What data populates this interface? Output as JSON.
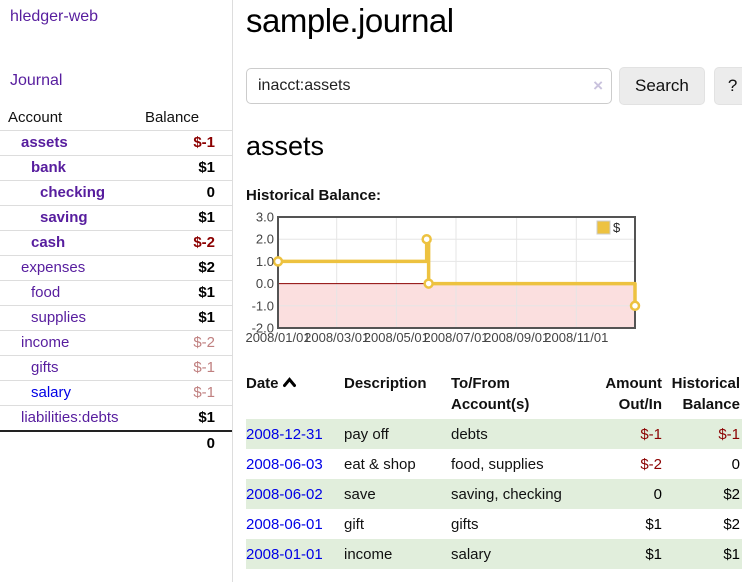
{
  "app": {
    "brand": "hledger-web"
  },
  "sidebar": {
    "journal_link": "Journal",
    "header": {
      "account": "Account",
      "balance": "Balance"
    },
    "accounts": [
      {
        "name": "assets",
        "balance": "$-1"
      },
      {
        "name": "bank",
        "balance": "$1"
      },
      {
        "name": "checking",
        "balance": "0"
      },
      {
        "name": "saving",
        "balance": "$1"
      },
      {
        "name": "cash",
        "balance": "$-2"
      },
      {
        "name": "expenses",
        "balance": "$2"
      },
      {
        "name": "food",
        "balance": "$1"
      },
      {
        "name": "supplies",
        "balance": "$1"
      },
      {
        "name": "income",
        "balance": "$-2"
      },
      {
        "name": "gifts",
        "balance": "$-1"
      },
      {
        "name": "salary",
        "balance": "$-1"
      },
      {
        "name": "liabilities:debts",
        "balance": "$1"
      }
    ],
    "total": "0"
  },
  "header": {
    "title": "sample.journal"
  },
  "search": {
    "query": "inacct:assets",
    "clear_icon": "×",
    "button_label": "Search",
    "help_label": "?"
  },
  "account_page": {
    "heading": "assets",
    "chart_label": "Historical Balance:"
  },
  "chart_data": {
    "type": "line",
    "title": "Historical Balance",
    "legend": {
      "label": "$",
      "position": "top-right"
    },
    "series": [
      {
        "name": "$",
        "color": "#edc240",
        "step": true,
        "points": [
          {
            "date": "2008-01-01",
            "day": 0,
            "value": 1
          },
          {
            "date": "2008-06-01",
            "day": 152,
            "value": 2
          },
          {
            "date": "2008-06-03",
            "day": 154,
            "value": 0
          },
          {
            "date": "2008-12-31",
            "day": 365,
            "value": -1
          }
        ]
      }
    ],
    "x_ticks": [
      {
        "label": "2008/01/01",
        "day": 0
      },
      {
        "label": "2008/03/01",
        "day": 60
      },
      {
        "label": "2008/05/01",
        "day": 121
      },
      {
        "label": "2008/07/01",
        "day": 182
      },
      {
        "label": "2008/09/01",
        "day": 244
      },
      {
        "label": "2008/11/01",
        "day": 305
      }
    ],
    "y_ticks": [
      3.0,
      2.0,
      1.0,
      0.0,
      -1.0,
      -2.0
    ],
    "ylim": [
      -2,
      3
    ],
    "xlim_days": [
      0,
      365
    ],
    "grid": true,
    "colors": {
      "negative_fill": "#fbdfdf",
      "zero_line": "#8b0000",
      "grid_line": "#e6e6e6",
      "border": "#545454",
      "tick_text": "#444444"
    }
  },
  "register": {
    "columns": {
      "date": "Date",
      "description": "Description",
      "accounts_l1": "To/From",
      "accounts_l2": "Account(s)",
      "amount_l1": "Amount",
      "amount_l2": "Out/In",
      "balance_l1": "Historical",
      "balance_l2": "Balance"
    },
    "rows": [
      {
        "date": "2008-12-31",
        "description": "pay off",
        "accounts": "debts",
        "amount": "$-1",
        "balance": "$-1"
      },
      {
        "date": "2008-06-03",
        "description": "eat & shop",
        "accounts": "food, supplies",
        "amount": "$-2",
        "balance": "0"
      },
      {
        "date": "2008-06-02",
        "description": "save",
        "accounts": "saving, checking",
        "amount": "0",
        "balance": "$2"
      },
      {
        "date": "2008-06-01",
        "description": "gift",
        "accounts": "gifts",
        "amount": "$1",
        "balance": "$2"
      },
      {
        "date": "2008-01-01",
        "description": "income",
        "accounts": "salary",
        "amount": "$1",
        "balance": "$1"
      }
    ]
  }
}
